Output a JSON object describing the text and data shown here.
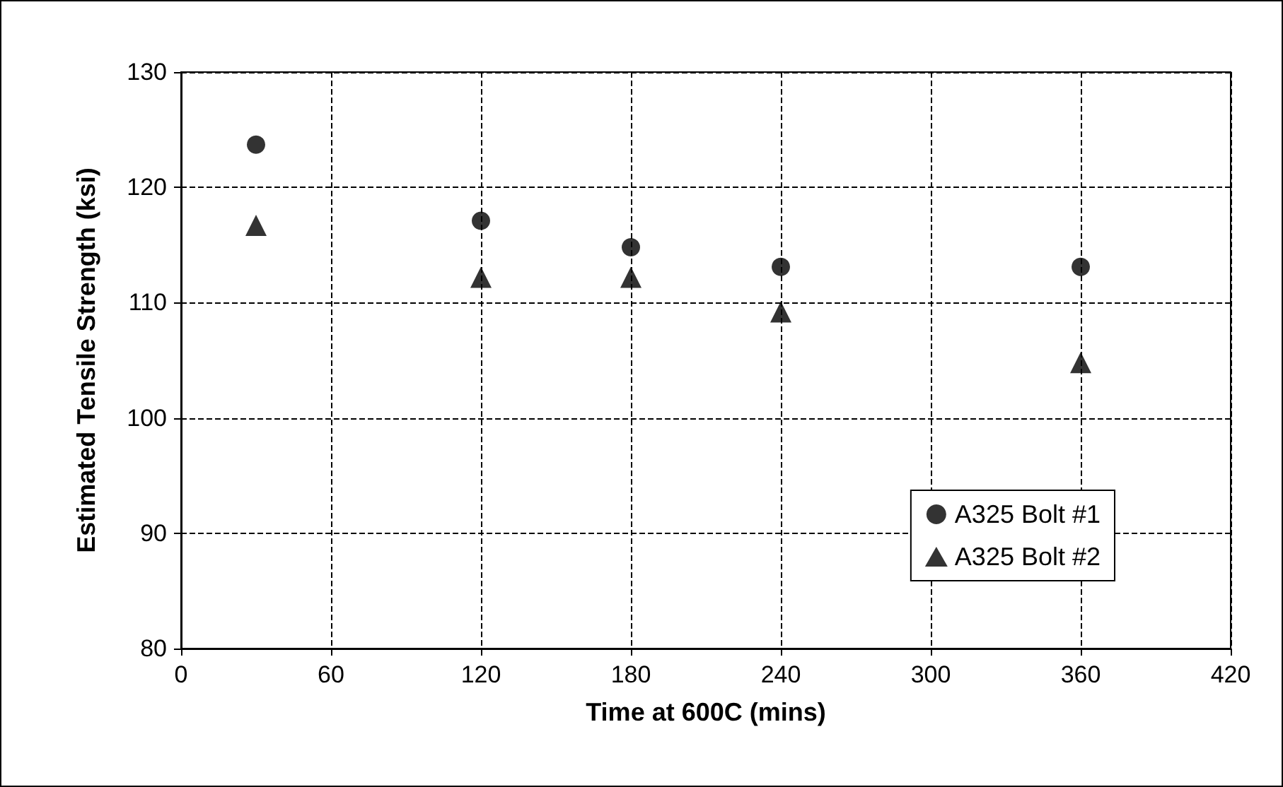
{
  "chart_data": {
    "type": "scatter",
    "xlabel": "Time at 600C (mins)",
    "ylabel": "Estimated Tensile Strength (ksi)",
    "xlim": [
      0,
      420
    ],
    "xticks": [
      0,
      60,
      120,
      180,
      240,
      300,
      360,
      420
    ],
    "ylim": [
      80,
      130
    ],
    "yticks": [
      80,
      90,
      100,
      110,
      120,
      130
    ],
    "grid": true,
    "legend": "bottom right",
    "series": [
      {
        "name": "A325 Bolt #1",
        "color": "#000000",
        "marker": "circle",
        "x": [
          30,
          120,
          180,
          240,
          360
        ],
        "values": [
          123.7,
          117.1,
          114.8,
          113.1,
          113.1
        ]
      },
      {
        "name": "A325 Bolt #2",
        "color": "#000000",
        "marker": "triangle",
        "x": [
          30,
          120,
          180,
          240,
          360
        ],
        "values": [
          116.7,
          112.2,
          112.2,
          109.2,
          104.8
        ]
      }
    ]
  }
}
